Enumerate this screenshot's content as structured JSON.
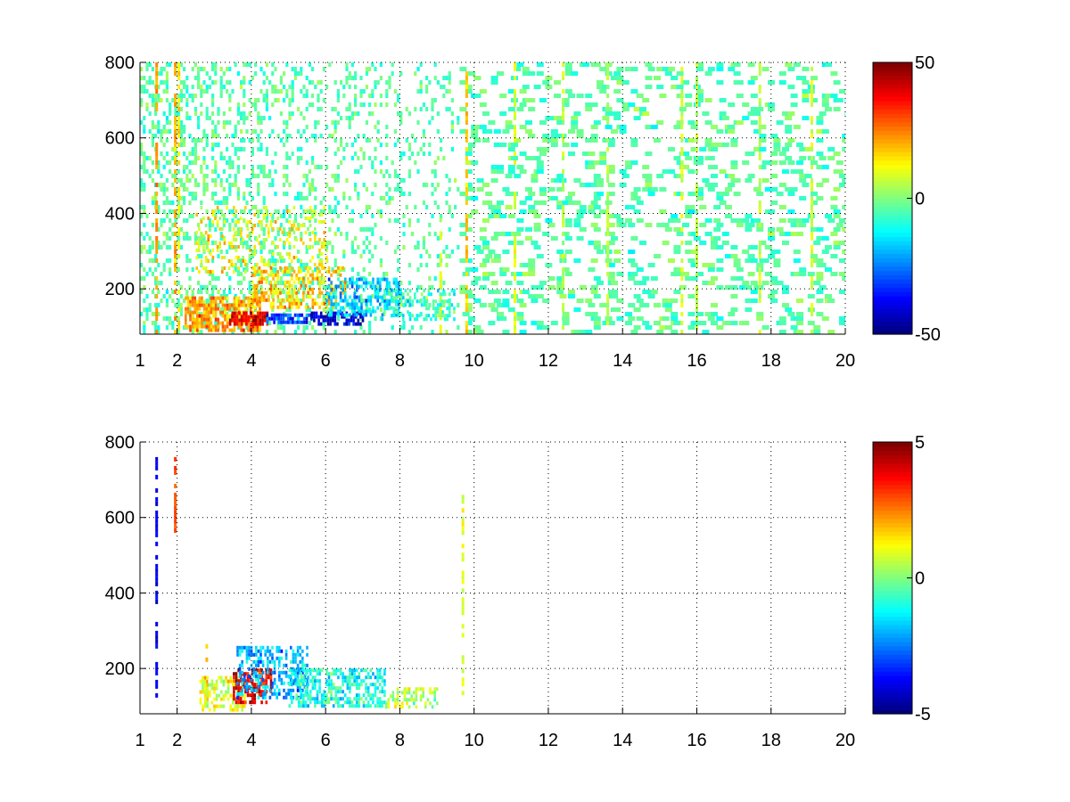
{
  "chart_data": [
    {
      "type": "heatmap",
      "title": "",
      "xlabel": "",
      "ylabel": "",
      "xlim": [
        1,
        20
      ],
      "ylim": [
        80,
        800
      ],
      "xticks": [
        1,
        2,
        4,
        6,
        8,
        10,
        12,
        14,
        16,
        18,
        20
      ],
      "yticks": [
        200,
        400,
        600,
        800
      ],
      "grid": true,
      "colormap": "jet",
      "colorbar": {
        "range": [
          -50,
          50
        ],
        "ticks": [
          -50,
          0,
          50
        ],
        "position": "right"
      },
      "regions": [
        {
          "x": [
            2.2,
            4.2
          ],
          "y": [
            95,
            180
          ],
          "value": 22,
          "density": 0.7
        },
        {
          "x": [
            3.4,
            4.4
          ],
          "y": [
            110,
            140
          ],
          "value": 40,
          "density": 0.8
        },
        {
          "x": [
            4.4,
            5.6
          ],
          "y": [
            110,
            135
          ],
          "value": -32,
          "density": 0.75
        },
        {
          "x": [
            5.6,
            7.0
          ],
          "y": [
            110,
            140
          ],
          "value": -42,
          "density": 0.7
        },
        {
          "x": [
            4.0,
            6.5
          ],
          "y": [
            150,
            260
          ],
          "value": 18,
          "density": 0.45
        },
        {
          "x": [
            6.0,
            8.0
          ],
          "y": [
            130,
            230
          ],
          "value": -18,
          "density": 0.5
        },
        {
          "x": [
            7.5,
            9.5
          ],
          "y": [
            120,
            200
          ],
          "value": -8,
          "density": 0.4
        },
        {
          "x": [
            2.5,
            6.0
          ],
          "y": [
            250,
            420
          ],
          "value": 12,
          "density": 0.22
        }
      ],
      "stripes": [
        {
          "x": 1.45,
          "y": [
            80,
            800
          ],
          "value": 22
        },
        {
          "x": 1.95,
          "y": [
            80,
            800
          ],
          "value": 20
        },
        {
          "x": 2.05,
          "y": [
            80,
            800
          ],
          "value": 14
        },
        {
          "x": 9.1,
          "y": [
            80,
            400
          ],
          "value": 8
        },
        {
          "x": 9.8,
          "y": [
            80,
            800
          ],
          "value": 18
        },
        {
          "x": 11.1,
          "y": [
            80,
            800
          ],
          "value": 10
        },
        {
          "x": 12.4,
          "y": [
            80,
            800
          ],
          "value": 4
        },
        {
          "x": 13.6,
          "y": [
            80,
            800
          ],
          "value": 6
        },
        {
          "x": 15.6,
          "y": [
            80,
            800
          ],
          "value": 8
        },
        {
          "x": 16.0,
          "y": [
            80,
            800
          ],
          "value": 6
        },
        {
          "x": 17.7,
          "y": [
            80,
            800
          ],
          "value": 6
        },
        {
          "x": 19.1,
          "y": [
            80,
            800
          ],
          "value": 8
        }
      ],
      "background": {
        "density_low_x": 0.35,
        "density_high_x": 0.13,
        "value": -4
      }
    },
    {
      "type": "heatmap",
      "title": "",
      "xlabel": "",
      "ylabel": "",
      "xlim": [
        1,
        20
      ],
      "ylim": [
        80,
        800
      ],
      "xticks": [
        1,
        2,
        4,
        6,
        8,
        10,
        12,
        14,
        16,
        18,
        20
      ],
      "yticks": [
        200,
        400,
        600,
        800
      ],
      "grid": true,
      "colormap": "jet",
      "colorbar": {
        "range": [
          -5,
          5
        ],
        "ticks": [
          -5,
          0,
          5
        ],
        "position": "right"
      },
      "regions": [
        {
          "x": [
            2.6,
            3.8
          ],
          "y": [
            90,
            180
          ],
          "value": 1,
          "density": 0.55
        },
        {
          "x": [
            3.5,
            4.5
          ],
          "y": [
            110,
            200
          ],
          "value": 4,
          "density": 0.6
        },
        {
          "x": [
            3.6,
            5.5
          ],
          "y": [
            120,
            260
          ],
          "value": -2,
          "density": 0.5
        },
        {
          "x": [
            5.0,
            7.6
          ],
          "y": [
            100,
            200
          ],
          "value": -1,
          "density": 0.55
        },
        {
          "x": [
            7.6,
            9.0
          ],
          "y": [
            100,
            150
          ],
          "value": 0.5,
          "density": 0.45
        }
      ],
      "stripes": [
        {
          "x": 1.45,
          "y": [
            130,
            760
          ],
          "value": -4
        },
        {
          "x": 1.95,
          "y": [
            560,
            760
          ],
          "value": 3
        },
        {
          "x": 2.8,
          "y": [
            100,
            300
          ],
          "value": 2
        },
        {
          "x": 9.7,
          "y": [
            120,
            660
          ],
          "value": 1
        }
      ],
      "background": {
        "density_low_x": 0.0,
        "density_high_x": 0.0,
        "value": 0
      }
    }
  ]
}
